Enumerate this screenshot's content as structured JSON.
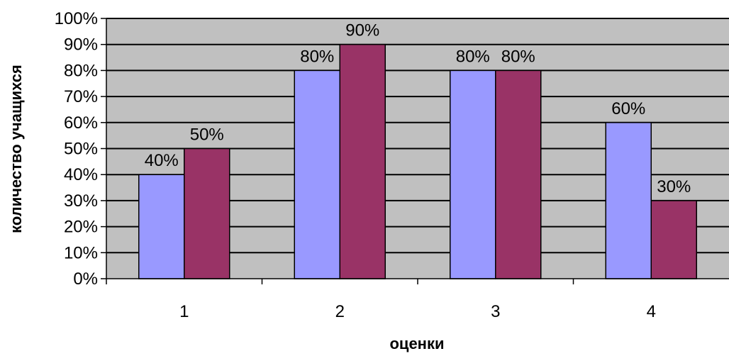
{
  "chart_data": {
    "type": "bar",
    "title": "",
    "xlabel": "оценки",
    "ylabel": "количество учащихся",
    "categories": [
      "1",
      "2",
      "3",
      "4"
    ],
    "series": [
      {
        "values": [
          40,
          80,
          80,
          60
        ],
        "color": "#9999ff"
      },
      {
        "values": [
          50,
          90,
          80,
          30
        ],
        "color": "#993366"
      }
    ],
    "ylim": [
      0,
      100
    ],
    "y_ticks": [
      "0%",
      "10%",
      "20%",
      "30%",
      "40%",
      "50%",
      "60%",
      "70%",
      "80%",
      "90%",
      "100%"
    ],
    "data_labels": [
      [
        "40%",
        "80%",
        "80%",
        "60%"
      ],
      [
        "50%",
        "90%",
        "80%",
        "30%"
      ]
    ],
    "grid": true,
    "legend": "none",
    "plot_background": "#c0c0c0",
    "gridline_color": "#000000"
  }
}
